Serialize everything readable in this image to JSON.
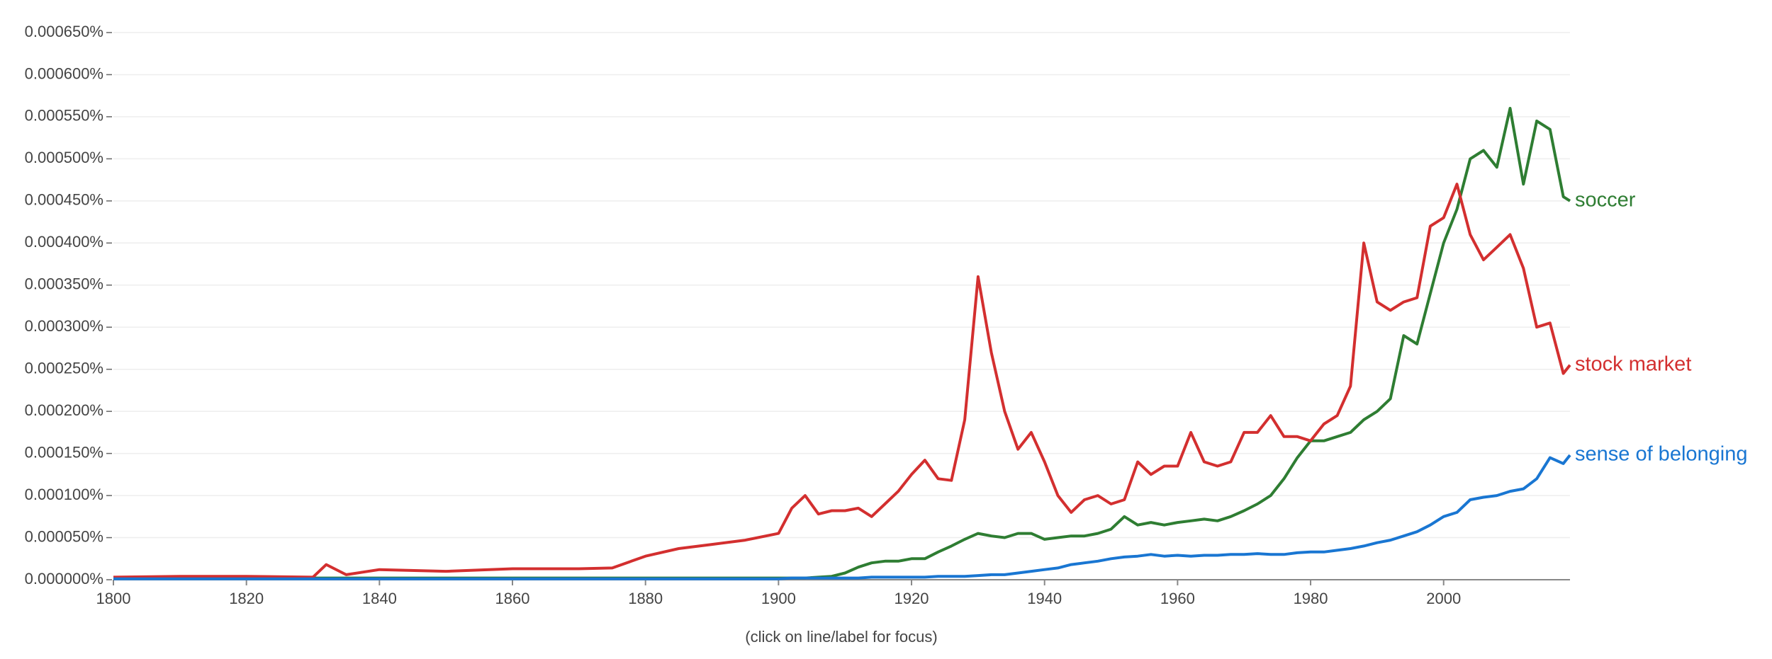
{
  "chart_data": {
    "type": "line",
    "footer": "(click on line/label for focus)",
    "x": [
      1800,
      1810,
      1820,
      1830,
      1832,
      1835,
      1840,
      1850,
      1860,
      1870,
      1875,
      1880,
      1885,
      1890,
      1895,
      1900,
      1902,
      1904,
      1906,
      1908,
      1910,
      1912,
      1914,
      1916,
      1918,
      1920,
      1922,
      1924,
      1926,
      1928,
      1930,
      1932,
      1934,
      1936,
      1938,
      1940,
      1942,
      1944,
      1946,
      1948,
      1950,
      1952,
      1954,
      1956,
      1958,
      1960,
      1962,
      1964,
      1966,
      1968,
      1970,
      1972,
      1974,
      1976,
      1978,
      1980,
      1982,
      1984,
      1986,
      1988,
      1990,
      1992,
      1994,
      1996,
      1998,
      2000,
      2002,
      2004,
      2006,
      2008,
      2010,
      2012,
      2014,
      2016,
      2018,
      2019
    ],
    "series": [
      {
        "name": "soccer",
        "color": "#2e7d32",
        "values": [
          2e-06,
          2e-06,
          2e-06,
          2e-06,
          2e-06,
          2e-06,
          2e-06,
          2e-06,
          2e-06,
          2e-06,
          2e-06,
          2e-06,
          2e-06,
          2e-06,
          2e-06,
          2e-06,
          2e-06,
          2e-06,
          3e-06,
          4e-06,
          8e-06,
          1.5e-05,
          2e-05,
          2.2e-05,
          2.2e-05,
          2.5e-05,
          2.5e-05,
          3.3e-05,
          4e-05,
          4.8e-05,
          5.5e-05,
          5.2e-05,
          5e-05,
          5.5e-05,
          5.5e-05,
          4.8e-05,
          5e-05,
          5.2e-05,
          5.2e-05,
          5.5e-05,
          6e-05,
          7.5e-05,
          6.5e-05,
          6.8e-05,
          6.5e-05,
          6.8e-05,
          7e-05,
          7.2e-05,
          7e-05,
          7.5e-05,
          8.2e-05,
          9e-05,
          0.0001,
          0.00012,
          0.000145,
          0.000165,
          0.000165,
          0.00017,
          0.000175,
          0.00019,
          0.0002,
          0.000215,
          0.00029,
          0.00028,
          0.00034,
          0.0004,
          0.00044,
          0.0005,
          0.00051,
          0.00049,
          0.00056,
          0.00047,
          0.000545,
          0.000535,
          0.000455,
          0.00045
        ]
      },
      {
        "name": "stock market",
        "color": "#d32f2f",
        "values": [
          3e-06,
          4e-06,
          4e-06,
          3e-06,
          1.8e-05,
          6e-06,
          1.2e-05,
          1e-05,
          1.3e-05,
          1.3e-05,
          1.4e-05,
          2.8e-05,
          3.7e-05,
          4.2e-05,
          4.7e-05,
          5.5e-05,
          8.5e-05,
          0.0001,
          7.8e-05,
          8.2e-05,
          8.2e-05,
          8.5e-05,
          7.5e-05,
          9e-05,
          0.000105,
          0.000125,
          0.000142,
          0.00012,
          0.000118,
          0.00019,
          0.00036,
          0.00027,
          0.0002,
          0.000155,
          0.000175,
          0.00014,
          0.0001,
          8e-05,
          9.5e-05,
          0.0001,
          9e-05,
          9.5e-05,
          0.00014,
          0.000125,
          0.000135,
          0.000135,
          0.000175,
          0.00014,
          0.000135,
          0.00014,
          0.000175,
          0.000175,
          0.000195,
          0.00017,
          0.00017,
          0.000165,
          0.000185,
          0.000195,
          0.00023,
          0.0004,
          0.00033,
          0.00032,
          0.00033,
          0.000335,
          0.00042,
          0.00043,
          0.00047,
          0.00041,
          0.00038,
          0.000395,
          0.00041,
          0.00037,
          0.0003,
          0.000305,
          0.000245,
          0.000255
        ]
      },
      {
        "name": "sense of belonging",
        "color": "#1976d2",
        "values": [
          1e-06,
          1e-06,
          1e-06,
          1e-06,
          1e-06,
          1e-06,
          1e-06,
          1e-06,
          1e-06,
          1e-06,
          1e-06,
          1e-06,
          1e-06,
          1e-06,
          1e-06,
          1e-06,
          2e-06,
          2e-06,
          2e-06,
          2e-06,
          2e-06,
          2e-06,
          3e-06,
          3e-06,
          3e-06,
          3e-06,
          3e-06,
          4e-06,
          4e-06,
          4e-06,
          5e-06,
          6e-06,
          6e-06,
          8e-06,
          1e-05,
          1.2e-05,
          1.4e-05,
          1.8e-05,
          2e-05,
          2.2e-05,
          2.5e-05,
          2.7e-05,
          2.8e-05,
          3e-05,
          2.8e-05,
          2.9e-05,
          2.8e-05,
          2.9e-05,
          2.9e-05,
          3e-05,
          3e-05,
          3.1e-05,
          3e-05,
          3e-05,
          3.2e-05,
          3.3e-05,
          3.3e-05,
          3.5e-05,
          3.7e-05,
          4e-05,
          4.4e-05,
          4.7e-05,
          5.2e-05,
          5.7e-05,
          6.5e-05,
          7.5e-05,
          8e-05,
          9.5e-05,
          9.8e-05,
          0.0001,
          0.000105,
          0.000108,
          0.00012,
          0.000145,
          0.000138,
          0.000148
        ]
      }
    ],
    "xlim": [
      1800,
      2019
    ],
    "xticks": [
      1800,
      1820,
      1840,
      1860,
      1880,
      1900,
      1920,
      1940,
      1960,
      1980,
      2000
    ],
    "ylim": [
      0,
      0.00065
    ],
    "yticks": [
      {
        "value": 0,
        "label": "0.000000%"
      },
      {
        "value": 5e-05,
        "label": "0.000050%"
      },
      {
        "value": 0.0001,
        "label": "0.000100%"
      },
      {
        "value": 0.00015,
        "label": "0.000150%"
      },
      {
        "value": 0.0002,
        "label": "0.000200%"
      },
      {
        "value": 0.00025,
        "label": "0.000250%"
      },
      {
        "value": 0.0003,
        "label": "0.000300%"
      },
      {
        "value": 0.00035,
        "label": "0.000350%"
      },
      {
        "value": 0.0004,
        "label": "0.000400%"
      },
      {
        "value": 0.00045,
        "label": "0.000450%"
      },
      {
        "value": 0.0005,
        "label": "0.000500%"
      },
      {
        "value": 0.00055,
        "label": "0.000550%"
      },
      {
        "value": 0.0006,
        "label": "0.000600%"
      },
      {
        "value": 0.00065,
        "label": "0.000650%"
      }
    ],
    "grid": true
  }
}
